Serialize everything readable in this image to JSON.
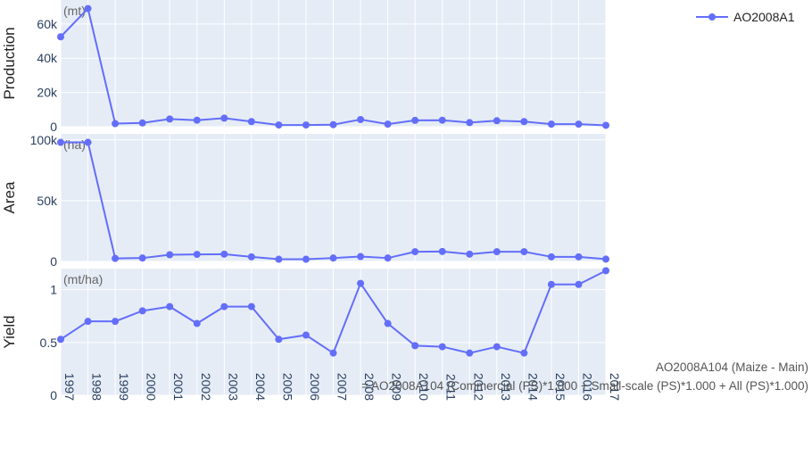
{
  "colors": {
    "series": "#636efa",
    "plot_bg": "#e5ecf6",
    "grid": "#ffffff"
  },
  "legend": {
    "label": "AO2008A1"
  },
  "note": {
    "line1": "AO2008A104 (Maize - Main)",
    "line2": "= AO2008A104 (Commercial (PS)*1.000 + Small-scale (PS)*1.000 + All (PS)*1.000)"
  },
  "chart_data": [
    {
      "type": "line",
      "ylabel": "Production",
      "unit": "(mt)",
      "x": [
        "1997",
        "1998",
        "1999",
        "2000",
        "2001",
        "2002",
        "2003",
        "2004",
        "2005",
        "2006",
        "2007",
        "2008",
        "2009",
        "2010",
        "2011",
        "2012",
        "2013",
        "2014",
        "2015",
        "2016",
        "2017"
      ],
      "series": [
        {
          "name": "AO2008A1",
          "values": [
            52500,
            69000,
            1800,
            2200,
            4500,
            3800,
            5000,
            3000,
            1000,
            1000,
            1200,
            4200,
            1500,
            3700,
            3800,
            2400,
            3500,
            3000,
            1500,
            1500,
            800
          ]
        }
      ],
      "ylim": [
        0,
        74000
      ],
      "yticks": [
        0,
        20000,
        40000,
        60000
      ],
      "yticklabels": [
        "0",
        "20k",
        "40k",
        "60k"
      ]
    },
    {
      "type": "line",
      "ylabel": "Area",
      "unit": "(ha)",
      "x": [
        "1997",
        "1998",
        "1999",
        "2000",
        "2001",
        "2002",
        "2003",
        "2004",
        "2005",
        "2006",
        "2007",
        "2008",
        "2009",
        "2010",
        "2011",
        "2012",
        "2013",
        "2014",
        "2015",
        "2016",
        "2017"
      ],
      "series": [
        {
          "name": "AO2008A1",
          "values": [
            98000,
            98000,
            2500,
            2800,
            5500,
            5800,
            6000,
            3800,
            1800,
            1800,
            2800,
            4000,
            2800,
            8000,
            8200,
            6000,
            8000,
            8000,
            3800,
            3800,
            1900
          ]
        }
      ],
      "ylim": [
        0,
        105000
      ],
      "yticks": [
        0,
        50000,
        100000
      ],
      "yticklabels": [
        "0",
        "50k",
        "100k"
      ]
    },
    {
      "type": "line",
      "ylabel": "Yield",
      "unit": "(mt/ha)",
      "x": [
        "1997",
        "1998",
        "1999",
        "2000",
        "2001",
        "2002",
        "2003",
        "2004",
        "2005",
        "2006",
        "2007",
        "2008",
        "2009",
        "2010",
        "2011",
        "2012",
        "2013",
        "2014",
        "2015",
        "2016",
        "2017"
      ],
      "series": [
        {
          "name": "AO2008A1",
          "values": [
            0.53,
            0.7,
            0.7,
            0.8,
            0.84,
            0.68,
            0.84,
            0.84,
            0.53,
            0.57,
            0.4,
            1.06,
            0.68,
            0.47,
            0.46,
            0.4,
            0.46,
            0.4,
            1.05,
            1.05,
            1.18
          ]
        }
      ],
      "ylim": [
        0,
        1.2
      ],
      "yticks": [
        0,
        0.5,
        1
      ],
      "yticklabels": [
        "0",
        "0.5",
        "1"
      ]
    }
  ]
}
